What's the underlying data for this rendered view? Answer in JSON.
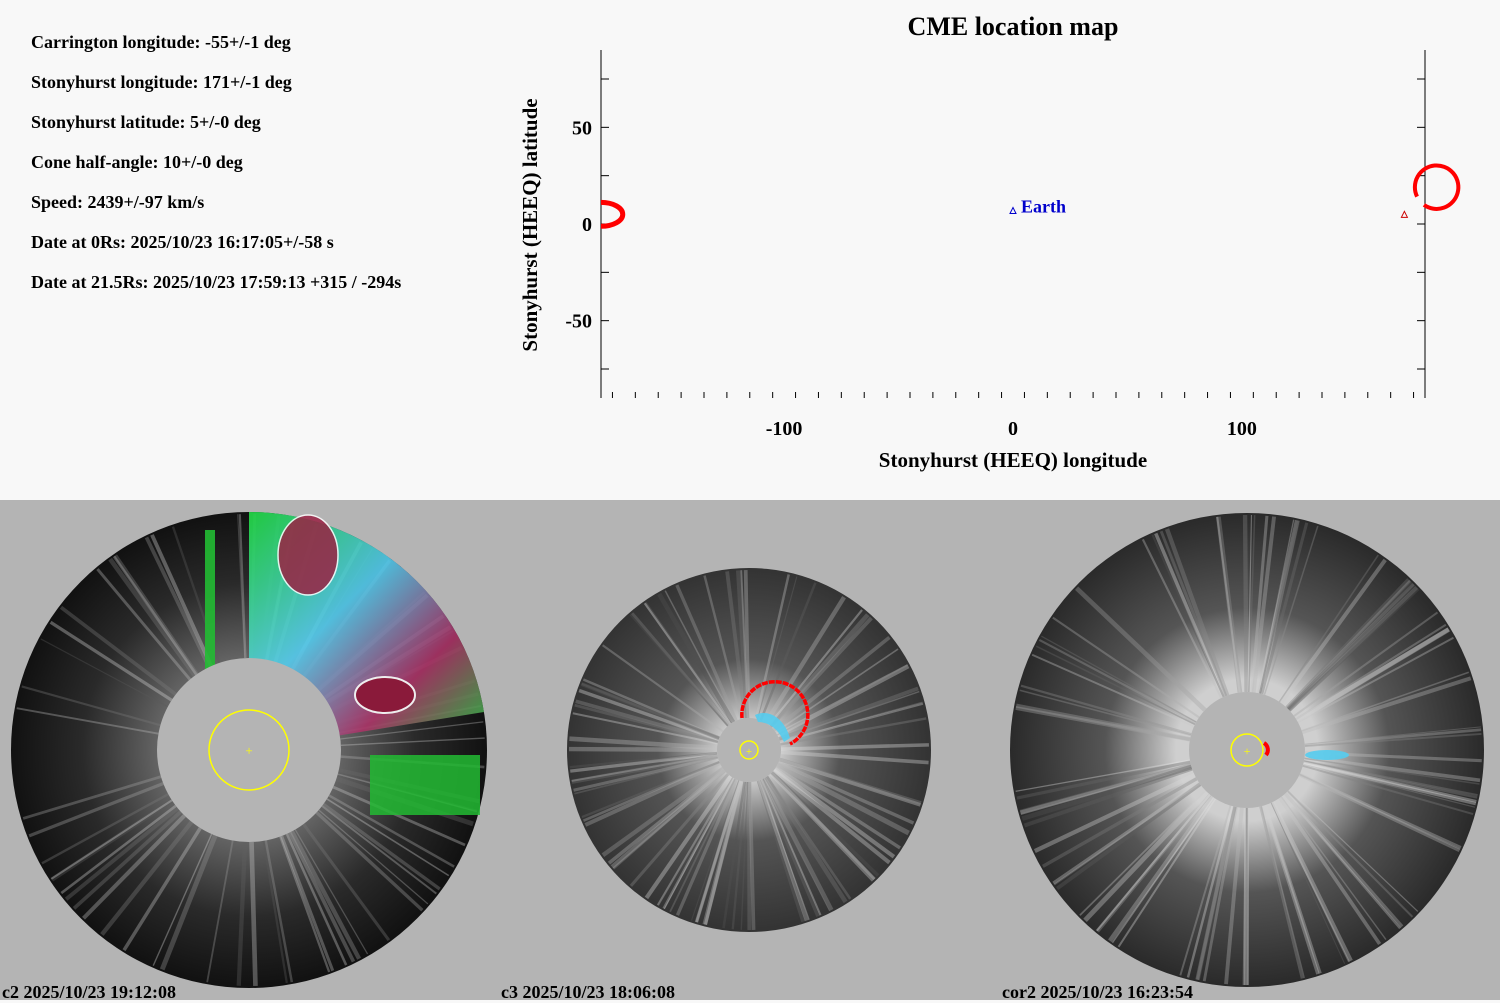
{
  "params": [
    "Carrington longitude: -55+/-1 deg",
    "Stonyhurst longitude: 171+/-1 deg",
    "Stonyhurst latitude: 5+/-0 deg",
    "Cone half-angle: 10+/-0 deg",
    "Speed: 2439+/-97 km/s",
    "Date at 0Rs: 2025/10/23 16:17:05+/-58 s",
    "Date at 21.5Rs: 2025/10/23 17:59:13 +315 / -294s"
  ],
  "chart_data": {
    "type": "scatter",
    "title": "CME location map",
    "xlabel": "Stonyhurst (HEEQ) longitude",
    "ylabel": "Stonyhurst (HEEQ) latitude",
    "xlim": [
      -180,
      180
    ],
    "ylim": [
      -90,
      90
    ],
    "x_ticks": [
      -100,
      0,
      100
    ],
    "y_ticks": [
      -50,
      0,
      50
    ],
    "x_tick_labels": [
      "-100",
      "0",
      "100"
    ],
    "y_tick_labels": [
      "-50",
      "0",
      "50"
    ],
    "points": [
      {
        "label": "Earth",
        "x": 0,
        "y": 7,
        "color": "#0000cc",
        "marker": "triangle"
      },
      {
        "label": "",
        "x": 171,
        "y": 5,
        "color": "#cc0000",
        "marker": "triangle"
      }
    ],
    "cme_cone": {
      "lon": 171,
      "lat": 5,
      "half_angle": 10,
      "color": "#ff0000"
    },
    "grid": false
  },
  "panels": [
    {
      "caption": "c2 2025/10/23 19:12:08"
    },
    {
      "caption": "c3 2025/10/23 18:06:08"
    },
    {
      "caption": "cor2 2025/10/23 16:23:54"
    }
  ],
  "colors": {
    "cme_outline": "#ff0000",
    "sun_circle": "#ffff00",
    "earth": "#0000cc",
    "occulter": "#b4b4b4"
  }
}
